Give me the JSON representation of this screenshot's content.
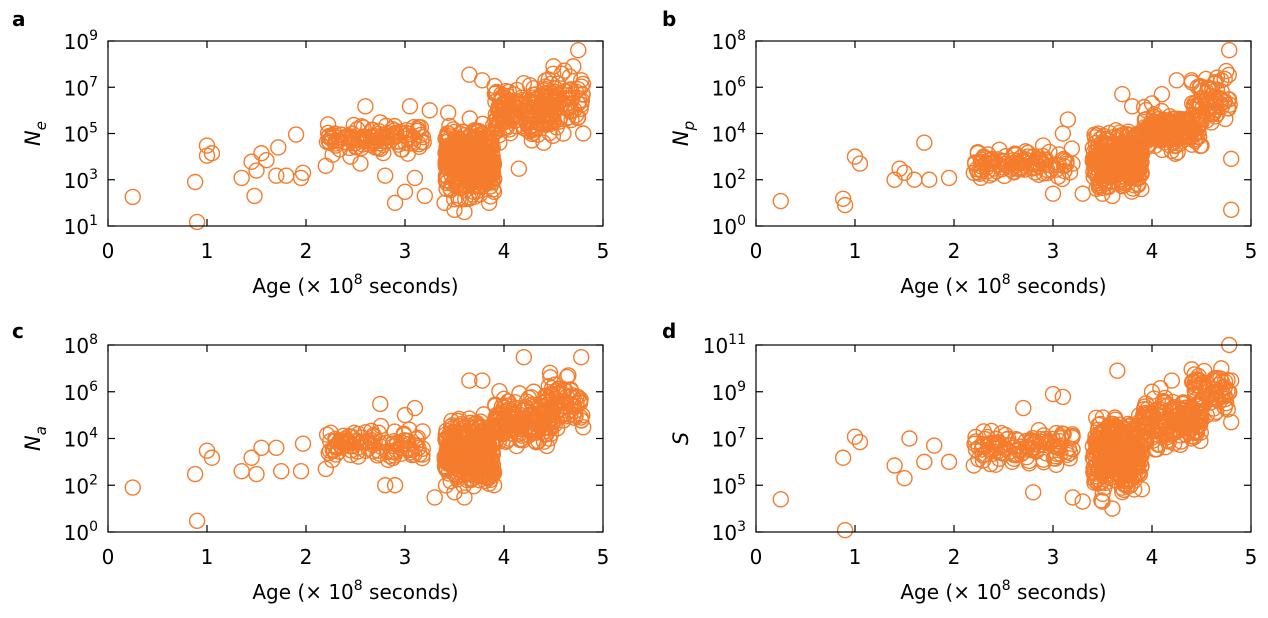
{
  "colors": {
    "marker": "#f47c2c",
    "axis": "#000000"
  },
  "chart_data": [
    {
      "panel": "a",
      "type": "scatter",
      "xlabel_main": "Age (× 10",
      "xlabel_sup": "8",
      "xlabel_tail": " seconds)",
      "ylabel_base": "N",
      "ylabel_sub": "e",
      "log_y": true,
      "xlim": [
        0,
        5
      ],
      "ylim": [
        10,
        1000000000
      ],
      "xticks": [
        "0",
        "1",
        "2",
        "3",
        "4",
        "5"
      ],
      "yticks": [
        {
          "base": "10",
          "exp": "1"
        },
        {
          "base": "10",
          "exp": "3"
        },
        {
          "base": "10",
          "exp": "5"
        },
        {
          "base": "10",
          "exp": "7"
        },
        {
          "base": "10",
          "exp": "9"
        }
      ],
      "seed": 11,
      "points": [
        [
          0.25,
          180
        ],
        [
          0.88,
          800
        ],
        [
          0.9,
          15
        ],
        [
          1.0,
          30000
        ],
        [
          1.0,
          11000
        ],
        [
          1.05,
          14000
        ],
        [
          1.35,
          1200
        ],
        [
          1.45,
          6000
        ],
        [
          1.48,
          200
        ],
        [
          1.5,
          2500
        ],
        [
          1.55,
          14000
        ],
        [
          1.6,
          7000
        ],
        [
          1.7,
          1500
        ],
        [
          1.72,
          25000
        ],
        [
          1.8,
          1500
        ],
        [
          1.9,
          90000
        ],
        [
          1.95,
          1200
        ],
        [
          1.97,
          2000
        ],
        [
          2.2,
          4000
        ],
        [
          2.25,
          60000
        ],
        [
          2.3,
          30000
        ],
        [
          2.35,
          90000
        ],
        [
          2.4,
          70000
        ],
        [
          2.45,
          10000
        ],
        [
          2.55,
          5000
        ],
        [
          2.6,
          1500000
        ],
        [
          2.7,
          25000
        ],
        [
          2.75,
          300000
        ],
        [
          2.8,
          1500
        ],
        [
          2.9,
          100
        ],
        [
          3.0,
          300
        ],
        [
          3.05,
          1500000
        ],
        [
          3.1,
          1200
        ],
        [
          3.2,
          200
        ],
        [
          3.25,
          1000000
        ],
        [
          3.4,
          100
        ],
        [
          3.5,
          50
        ],
        [
          3.6,
          40
        ],
        [
          3.65,
          35000000
        ],
        [
          3.7,
          3000
        ],
        [
          3.78,
          20000000
        ],
        [
          3.85,
          100
        ],
        [
          3.9,
          300
        ],
        [
          4.0,
          300000
        ],
        [
          4.1,
          600000
        ],
        [
          4.15,
          3000
        ],
        [
          4.2,
          15000000
        ],
        [
          4.3,
          2000000
        ],
        [
          4.4,
          40000
        ],
        [
          4.5,
          80000000
        ],
        [
          4.6,
          100000
        ],
        [
          4.65,
          500000
        ],
        [
          4.7,
          80000000
        ],
        [
          4.75,
          400000000
        ],
        [
          4.8,
          100000
        ],
        [
          4.78,
          20000000
        ]
      ],
      "dense": [
        {
          "x": [
            2.2,
            3.2
          ],
          "ly": [
            4.0,
            5.6
          ],
          "n": 110
        },
        {
          "x": [
            3.4,
            3.9
          ],
          "ly": [
            1.6,
            6.0
          ],
          "n": 360
        },
        {
          "x": [
            3.9,
            4.5
          ],
          "ly": [
            4.3,
            7.3
          ],
          "n": 170
        },
        {
          "x": [
            4.4,
            4.8
          ],
          "ly": [
            5.0,
            8.0
          ],
          "n": 70
        }
      ]
    },
    {
      "panel": "b",
      "type": "scatter",
      "xlabel_main": "Age (× 10",
      "xlabel_sup": "8",
      "xlabel_tail": " seconds)",
      "ylabel_base": "N",
      "ylabel_sub": "p",
      "log_y": true,
      "xlim": [
        0,
        5
      ],
      "ylim": [
        1,
        100000000
      ],
      "xticks": [
        "0",
        "1",
        "2",
        "3",
        "4",
        "5"
      ],
      "yticks": [
        {
          "base": "10",
          "exp": "0"
        },
        {
          "base": "10",
          "exp": "2"
        },
        {
          "base": "10",
          "exp": "4"
        },
        {
          "base": "10",
          "exp": "6"
        },
        {
          "base": "10",
          "exp": "8"
        }
      ],
      "seed": 23,
      "points": [
        [
          0.25,
          12
        ],
        [
          0.88,
          15
        ],
        [
          0.9,
          8
        ],
        [
          1.0,
          1000
        ],
        [
          1.05,
          500
        ],
        [
          1.4,
          100
        ],
        [
          1.45,
          300
        ],
        [
          1.5,
          200
        ],
        [
          1.6,
          100
        ],
        [
          1.7,
          4000
        ],
        [
          1.75,
          100
        ],
        [
          1.95,
          120
        ],
        [
          2.2,
          200
        ],
        [
          2.3,
          1000
        ],
        [
          2.4,
          300
        ],
        [
          2.6,
          700
        ],
        [
          2.8,
          1000
        ],
        [
          2.9,
          3000
        ],
        [
          3.0,
          25
        ],
        [
          3.1,
          10000
        ],
        [
          3.15,
          40000
        ],
        [
          3.3,
          25
        ],
        [
          3.5,
          25
        ],
        [
          3.6,
          20
        ],
        [
          3.7,
          500000
        ],
        [
          3.8,
          150000
        ],
        [
          4.0,
          200000
        ],
        [
          4.1,
          500000
        ],
        [
          4.25,
          2000000
        ],
        [
          4.4,
          2000000
        ],
        [
          4.5,
          3000
        ],
        [
          4.6,
          30000
        ],
        [
          4.7,
          2000000
        ],
        [
          4.75,
          5000000
        ],
        [
          4.78,
          40000000
        ],
        [
          4.8,
          5
        ],
        [
          4.8,
          800
        ]
      ],
      "dense": [
        {
          "x": [
            2.2,
            3.2
          ],
          "ly": [
            1.8,
            3.6
          ],
          "n": 110
        },
        {
          "x": [
            3.4,
            3.9
          ],
          "ly": [
            1.2,
            4.5
          ],
          "n": 360
        },
        {
          "x": [
            3.9,
            4.5
          ],
          "ly": [
            3.0,
            5.3
          ],
          "n": 170
        },
        {
          "x": [
            4.4,
            4.8
          ],
          "ly": [
            4.0,
            7.0
          ],
          "n": 70
        }
      ]
    },
    {
      "panel": "c",
      "type": "scatter",
      "xlabel_main": "Age (× 10",
      "xlabel_sup": "8",
      "xlabel_tail": " seconds)",
      "ylabel_base": "N",
      "ylabel_sub": "a",
      "log_y": true,
      "xlim": [
        0,
        5
      ],
      "ylim": [
        1,
        100000000
      ],
      "xticks": [
        "0",
        "1",
        "2",
        "3",
        "4",
        "5"
      ],
      "yticks": [
        {
          "base": "10",
          "exp": "0"
        },
        {
          "base": "10",
          "exp": "2"
        },
        {
          "base": "10",
          "exp": "4"
        },
        {
          "base": "10",
          "exp": "6"
        },
        {
          "base": "10",
          "exp": "8"
        }
      ],
      "seed": 37,
      "points": [
        [
          0.25,
          80
        ],
        [
          0.88,
          300
        ],
        [
          0.9,
          3
        ],
        [
          1.0,
          3000
        ],
        [
          1.05,
          1500
        ],
        [
          1.35,
          400
        ],
        [
          1.45,
          1500
        ],
        [
          1.5,
          300
        ],
        [
          1.55,
          4000
        ],
        [
          1.7,
          4000
        ],
        [
          1.75,
          400
        ],
        [
          1.95,
          400
        ],
        [
          1.97,
          6000
        ],
        [
          2.2,
          500
        ],
        [
          2.3,
          8000
        ],
        [
          2.4,
          10000
        ],
        [
          2.6,
          3000
        ],
        [
          2.75,
          300000
        ],
        [
          2.8,
          100
        ],
        [
          2.9,
          100
        ],
        [
          3.0,
          100000
        ],
        [
          3.1,
          200000
        ],
        [
          3.3,
          30
        ],
        [
          3.5,
          50
        ],
        [
          3.6,
          30
        ],
        [
          3.65,
          3000000
        ],
        [
          3.7,
          40000
        ],
        [
          3.78,
          3000000
        ],
        [
          3.9,
          100
        ],
        [
          4.0,
          500000
        ],
        [
          4.2,
          30000000
        ],
        [
          4.3,
          1000000
        ],
        [
          4.5,
          50000
        ],
        [
          4.65,
          5000000
        ],
        [
          4.7,
          100000
        ],
        [
          4.78,
          30000000
        ],
        [
          4.8,
          30000
        ]
      ],
      "dense": [
        {
          "x": [
            2.2,
            3.2
          ],
          "ly": [
            2.8,
            4.6
          ],
          "n": 110
        },
        {
          "x": [
            3.4,
            3.9
          ],
          "ly": [
            1.5,
            5.3
          ],
          "n": 360
        },
        {
          "x": [
            3.9,
            4.5
          ],
          "ly": [
            3.3,
            6.3
          ],
          "n": 170
        },
        {
          "x": [
            4.4,
            4.8
          ],
          "ly": [
            4.0,
            7.0
          ],
          "n": 70
        }
      ]
    },
    {
      "panel": "d",
      "type": "scatter",
      "xlabel_main": "Age (× 10",
      "xlabel_sup": "8",
      "xlabel_tail": " seconds)",
      "ylabel_base": "S",
      "ylabel_sub": "",
      "log_y": true,
      "xlim": [
        0,
        5
      ],
      "ylim": [
        1000,
        100000000000
      ],
      "xticks": [
        "0",
        "1",
        "2",
        "3",
        "4",
        "5"
      ],
      "yticks": [
        {
          "base": "10",
          "exp": "3"
        },
        {
          "base": "10",
          "exp": "5"
        },
        {
          "base": "10",
          "exp": "7"
        },
        {
          "base": "10",
          "exp": "9"
        },
        {
          "base": "10",
          "exp": "11"
        }
      ],
      "seed": 53,
      "points": [
        [
          0.25,
          25000
        ],
        [
          0.88,
          1500000
        ],
        [
          0.9,
          1200
        ],
        [
          1.0,
          12000000
        ],
        [
          1.05,
          7000000
        ],
        [
          1.4,
          700000
        ],
        [
          1.5,
          200000
        ],
        [
          1.55,
          10000000
        ],
        [
          1.7,
          1000000
        ],
        [
          1.8,
          5000000
        ],
        [
          1.95,
          1000000
        ],
        [
          2.2,
          700000
        ],
        [
          2.3,
          20000000
        ],
        [
          2.4,
          4000000
        ],
        [
          2.6,
          2000000
        ],
        [
          2.7,
          200000000
        ],
        [
          2.8,
          50000
        ],
        [
          3.0,
          800000000
        ],
        [
          3.1,
          600000000
        ],
        [
          3.2,
          30000
        ],
        [
          3.3,
          20000
        ],
        [
          3.5,
          20000
        ],
        [
          3.6,
          10000
        ],
        [
          3.65,
          8000000000
        ],
        [
          3.7,
          5000000
        ],
        [
          3.8,
          20000000
        ],
        [
          4.0,
          1000000000
        ],
        [
          4.15,
          20000000
        ],
        [
          4.2,
          3000000000
        ],
        [
          4.4,
          10000000
        ],
        [
          4.5,
          60000000
        ],
        [
          4.65,
          1000000000
        ],
        [
          4.7,
          10000000000
        ],
        [
          4.78,
          100000000000
        ],
        [
          4.8,
          50000000
        ],
        [
          4.8,
          3000000000
        ]
      ],
      "dense": [
        {
          "x": [
            2.2,
            3.2
          ],
          "ly": [
            5.5,
            7.8
          ],
          "n": 110
        },
        {
          "x": [
            3.4,
            3.9
          ],
          "ly": [
            4.2,
            8.5
          ],
          "n": 360
        },
        {
          "x": [
            3.9,
            4.5
          ],
          "ly": [
            6.3,
            9.3
          ],
          "n": 170
        },
        {
          "x": [
            4.4,
            4.8
          ],
          "ly": [
            7.5,
            10.5
          ],
          "n": 70
        }
      ]
    }
  ]
}
